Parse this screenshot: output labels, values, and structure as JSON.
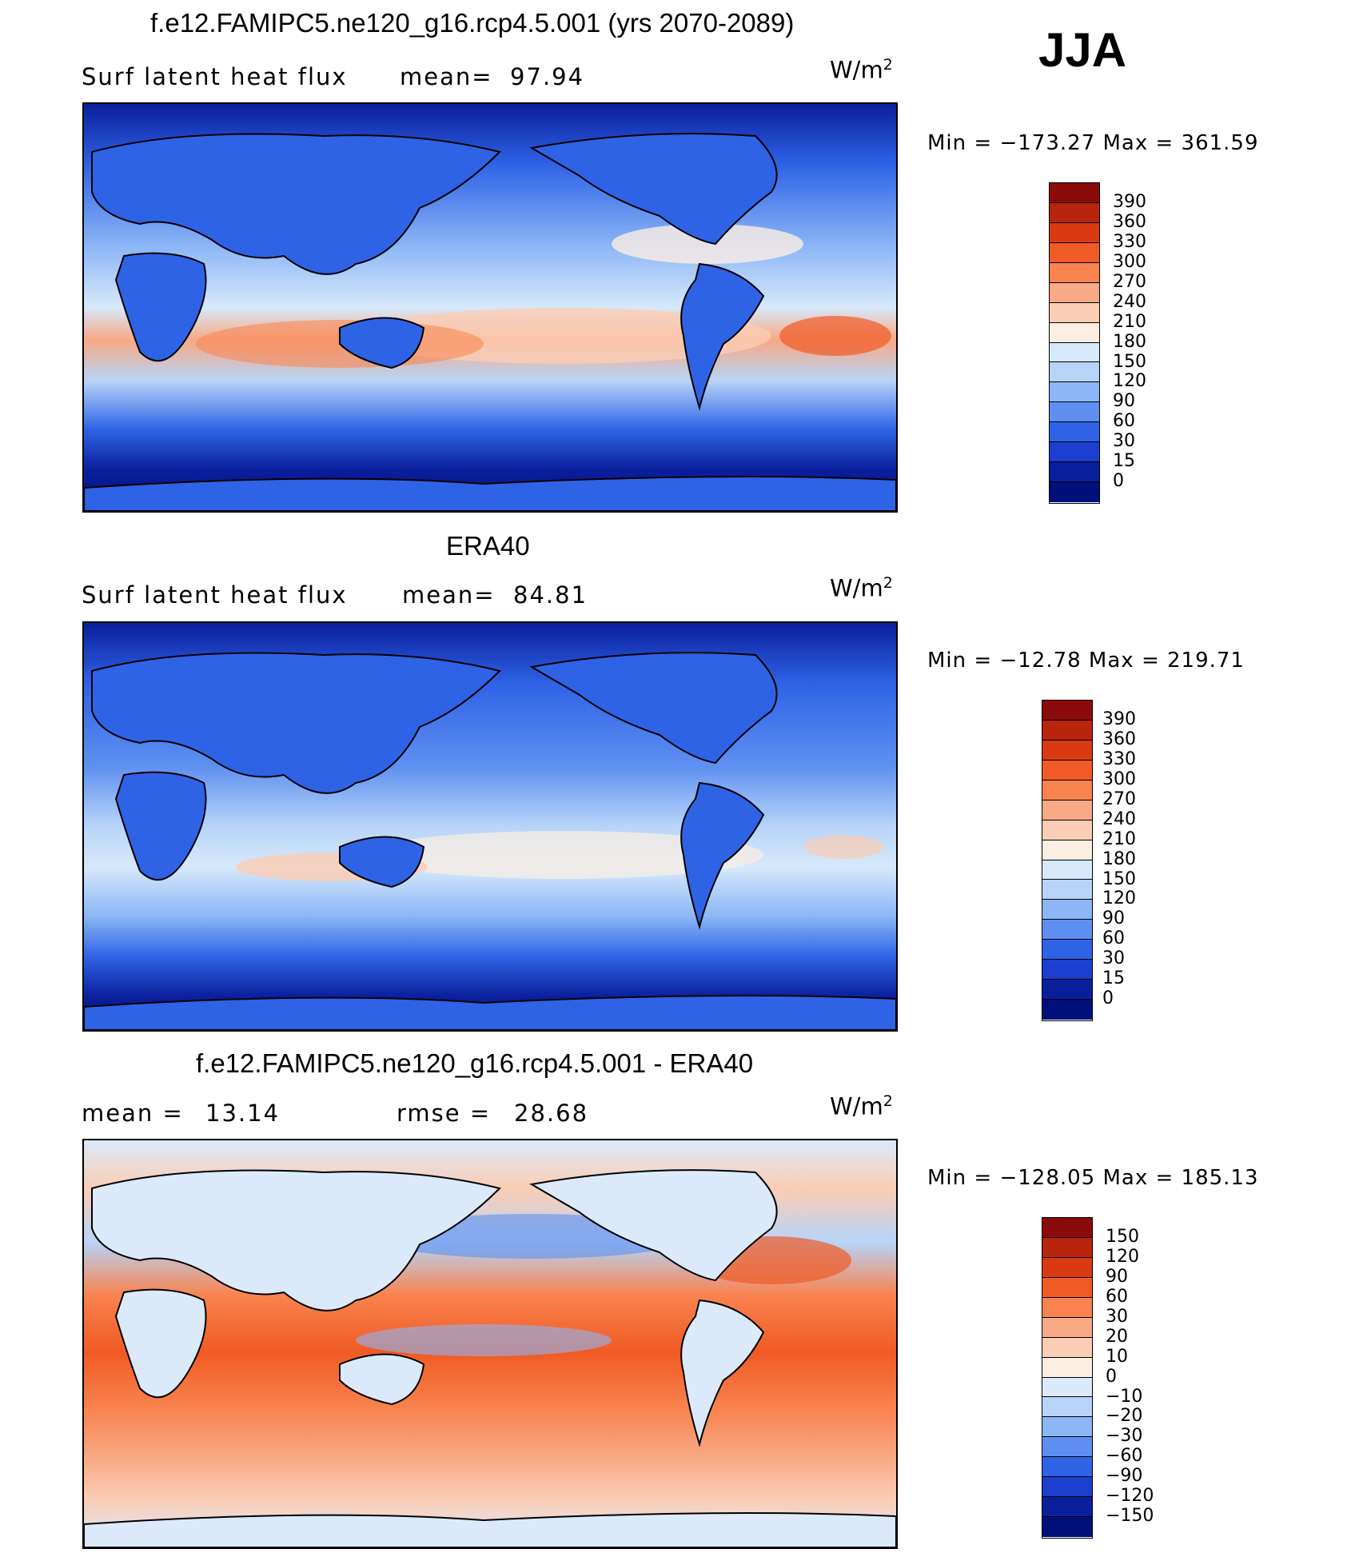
{
  "season": "JJA",
  "units_prefix": "W/m",
  "units_exp": "2",
  "panels": [
    {
      "title": "f.e12.FAMIPC5.ne120_g16.rcp4.5.001 (yrs 2070-2089)",
      "left_label": "Surf  latent  heat  flux",
      "stat_label": "mean=",
      "stat_value": "97.94",
      "minmax": "Min  =  −173.27  Max  =  361.59",
      "mean_value": 97.94,
      "min_value": -173.27,
      "max_value": 361.59
    },
    {
      "title": "ERA40",
      "left_label": "Surf  latent  heat  flux",
      "stat_label": "mean=",
      "stat_value": "84.81",
      "minmax": "Min  =  −12.78  Max  =  219.71",
      "mean_value": 84.81,
      "min_value": -12.78,
      "max_value": 219.71
    },
    {
      "title": "f.e12.FAMIPC5.ne120_g16.rcp4.5.001 - ERA40",
      "left_label": "mean  =",
      "left_value": "13.14",
      "stat_label": "rmse  =",
      "stat_value": "28.68",
      "minmax": "Min  =  −128.05  Max  =  185.13",
      "mean_value": 13.14,
      "rmse_value": 28.68,
      "min_value": -128.05,
      "max_value": 185.13
    }
  ],
  "colorbar_abs": {
    "labels": [
      "390",
      "360",
      "330",
      "300",
      "270",
      "240",
      "210",
      "180",
      "150",
      "120",
      "90",
      "60",
      "30",
      "15",
      "0"
    ],
    "colors": [
      "#8b0a0a",
      "#b8240c",
      "#d93a12",
      "#f05a24",
      "#f9834f",
      "#f8a985",
      "#fbcdb4",
      "#fbeee3",
      "#d6e9fb",
      "#b7d4f8",
      "#8cb6f6",
      "#5e8ff0",
      "#2f63e6",
      "#1c3fcf",
      "#0a1f9c",
      "#00107a"
    ]
  },
  "colorbar_diff": {
    "labels": [
      "150",
      "120",
      "90",
      "60",
      "30",
      "20",
      "10",
      "0",
      "−10",
      "−20",
      "−30",
      "−60",
      "−90",
      "−120",
      "−150"
    ],
    "colors": [
      "#8b0a0a",
      "#b8240c",
      "#d93a12",
      "#f05a24",
      "#f9834f",
      "#f8a985",
      "#fbcdb4",
      "#fbeee3",
      "#dbe9fb",
      "#b7d4f8",
      "#8cb6f6",
      "#5e8ff0",
      "#2f63e6",
      "#1c3fcf",
      "#0a1f9c",
      "#00107a"
    ]
  }
}
